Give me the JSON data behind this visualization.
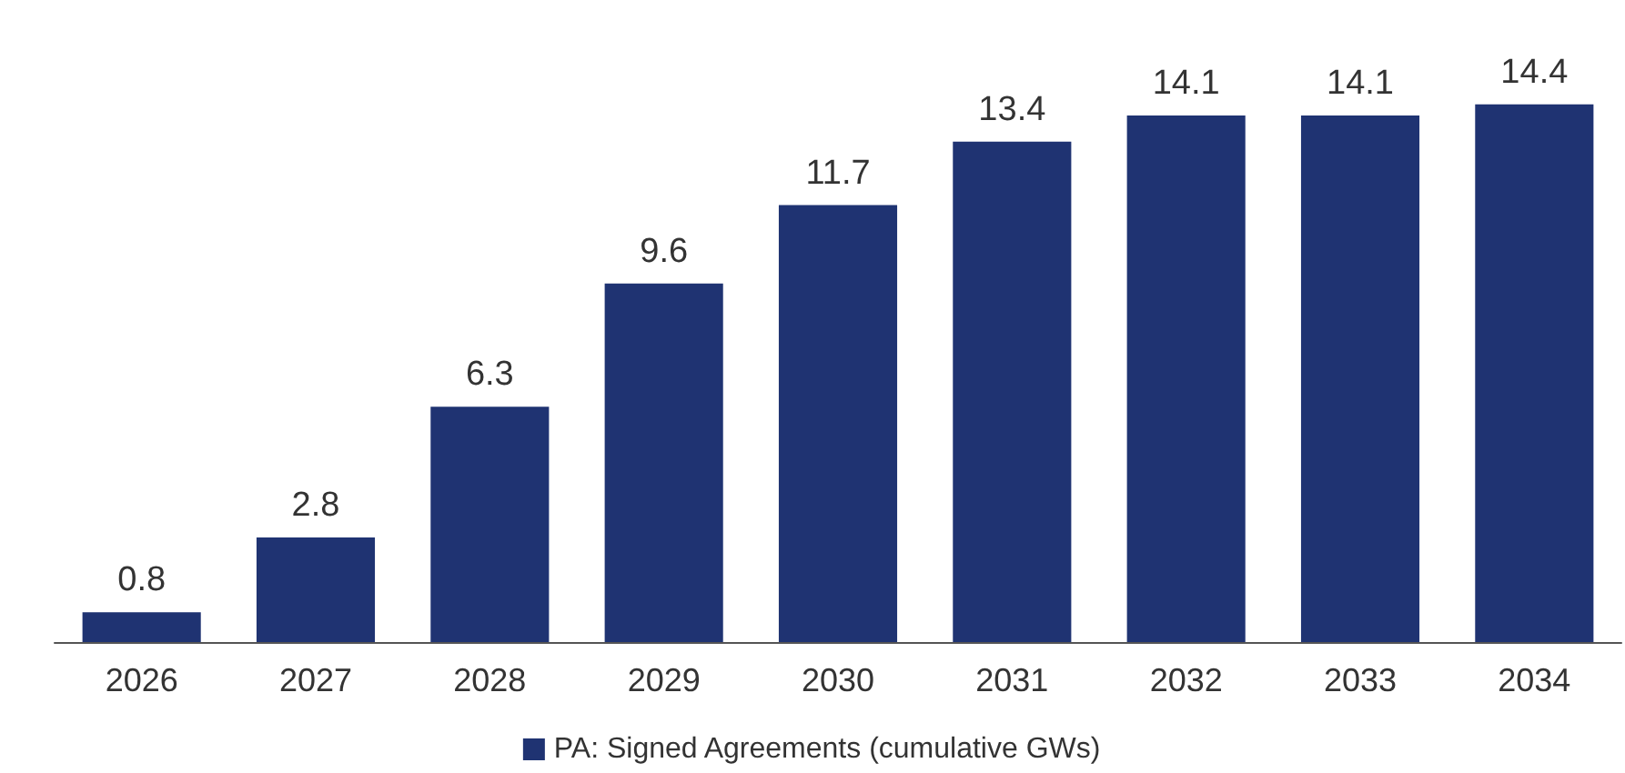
{
  "chart_data": {
    "type": "bar",
    "categories": [
      "2026",
      "2027",
      "2028",
      "2029",
      "2030",
      "2031",
      "2032",
      "2033",
      "2034"
    ],
    "series": [
      {
        "name": "PA: Signed Agreements (cumulative GWs)",
        "color": "#1f3372",
        "values": [
          0.8,
          2.8,
          6.3,
          9.6,
          11.7,
          13.4,
          14.1,
          14.1,
          14.4
        ]
      }
    ],
    "data_labels": true,
    "legend": "bottom"
  }
}
